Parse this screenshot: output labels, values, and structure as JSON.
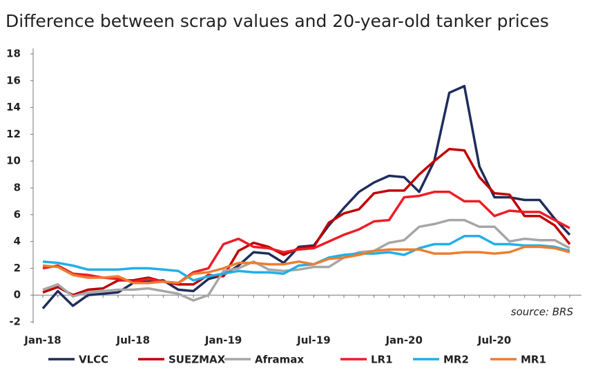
{
  "chart_data": {
    "type": "line",
    "title": "Difference between scrap values and 20-year-old tanker prices",
    "annotation": "source: BRS",
    "categories": [
      "Jan-18",
      null,
      null,
      null,
      null,
      null,
      "Jul-18",
      null,
      null,
      null,
      null,
      null,
      "Jan-19",
      null,
      null,
      null,
      null,
      null,
      "Jul-19",
      null,
      null,
      null,
      null,
      null,
      "Jan-20",
      null,
      null,
      null,
      null,
      null,
      "Jul-20",
      null,
      null,
      null,
      null,
      null
    ],
    "series": [
      {
        "name": "VLCC",
        "color": "#1f2d5c",
        "values": [
          -1.0,
          0.3,
          -0.8,
          0.0,
          0.1,
          0.2,
          0.9,
          1.0,
          1.1,
          0.4,
          0.3,
          1.2,
          1.5,
          2.2,
          3.2,
          3.1,
          2.4,
          3.6,
          3.7,
          5.2,
          6.5,
          7.7,
          8.4,
          8.9,
          8.8,
          7.7,
          10.0,
          15.1,
          15.6,
          9.6,
          7.3,
          7.3,
          7.1,
          7.1,
          5.7,
          4.5
        ]
      },
      {
        "name": "SUEZMAX",
        "color": "#c00000",
        "values": [
          0.2,
          0.6,
          0.0,
          0.4,
          0.5,
          1.1,
          1.1,
          1.3,
          1.0,
          0.8,
          0.8,
          1.5,
          1.4,
          3.3,
          3.9,
          3.6,
          3.0,
          3.5,
          3.6,
          5.4,
          6.1,
          6.4,
          7.6,
          7.8,
          7.8,
          9.0,
          10.0,
          10.9,
          10.8,
          8.8,
          7.6,
          7.5,
          5.9,
          5.9,
          5.2,
          3.8
        ]
      },
      {
        "name": "Aframax",
        "color": "#a6a6a6",
        "values": [
          0.4,
          0.8,
          -0.1,
          0.2,
          0.3,
          0.4,
          0.4,
          0.5,
          0.3,
          0.1,
          -0.4,
          0.0,
          1.8,
          2.0,
          2.5,
          1.9,
          1.8,
          1.9,
          2.1,
          2.1,
          2.8,
          3.2,
          3.3,
          3.9,
          4.1,
          5.1,
          5.3,
          5.6,
          5.6,
          5.1,
          5.1,
          4.0,
          4.2,
          4.1,
          4.1,
          3.5
        ]
      },
      {
        "name": "LR1",
        "color": "#ee1c25",
        "values": [
          2.0,
          2.2,
          1.6,
          1.5,
          1.3,
          1.2,
          1.0,
          1.2,
          1.0,
          0.9,
          1.7,
          2.0,
          3.8,
          4.2,
          3.6,
          3.5,
          3.2,
          3.4,
          3.5,
          4.0,
          4.5,
          4.9,
          5.5,
          5.6,
          7.3,
          7.4,
          7.7,
          7.7,
          7.0,
          7.0,
          5.9,
          6.3,
          6.2,
          6.2,
          5.6,
          5.0
        ]
      },
      {
        "name": "MR2",
        "color": "#1fb0e8",
        "values": [
          2.5,
          2.4,
          2.2,
          1.9,
          1.9,
          1.9,
          2.0,
          2.0,
          1.9,
          1.8,
          1.1,
          1.4,
          1.6,
          1.8,
          1.7,
          1.7,
          1.6,
          2.2,
          2.3,
          2.8,
          3.0,
          3.1,
          3.1,
          3.2,
          3.0,
          3.5,
          3.8,
          3.8,
          4.4,
          4.4,
          3.8,
          3.8,
          3.7,
          3.7,
          3.6,
          3.3
        ]
      },
      {
        "name": "MR1",
        "color": "#ed7d31",
        "values": [
          2.2,
          2.1,
          1.5,
          1.3,
          1.3,
          1.4,
          0.9,
          0.9,
          1.0,
          0.9,
          1.6,
          1.7,
          2.0,
          2.4,
          2.4,
          2.3,
          2.3,
          2.5,
          2.3,
          2.7,
          2.8,
          3.0,
          3.3,
          3.4,
          3.4,
          3.4,
          3.1,
          3.1,
          3.2,
          3.2,
          3.1,
          3.2,
          3.6,
          3.6,
          3.5,
          3.2
        ]
      }
    ],
    "ylim": [
      -2,
      18
    ],
    "yticks": [
      -2,
      0,
      2,
      4,
      6,
      8,
      10,
      12,
      14,
      16,
      18
    ],
    "grid": false
  }
}
